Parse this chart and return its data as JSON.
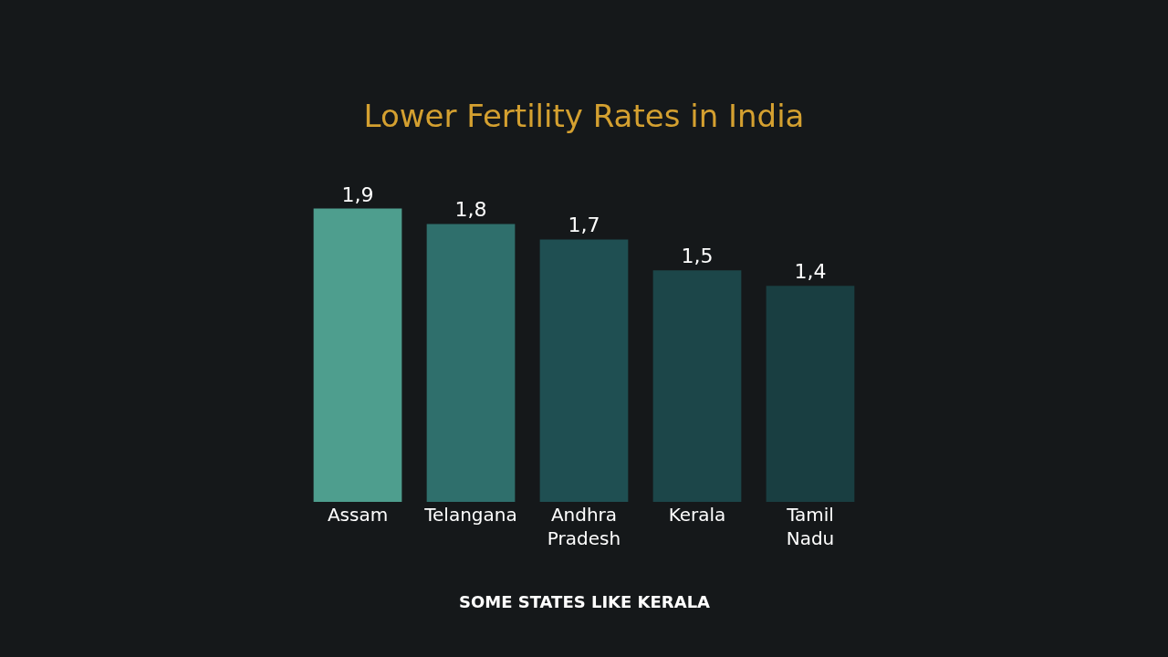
{
  "chart_data": {
    "type": "bar",
    "title": "Lower Fertility Rates in India",
    "categories": [
      "Assam",
      "Telangana",
      "Andhra Pradesh",
      "Kerala",
      "Tamil Nadu"
    ],
    "values": [
      1.9,
      1.8,
      1.7,
      1.5,
      1.4
    ],
    "value_labels": [
      "1,9",
      "1,8",
      "1,7",
      "1,5",
      "1,4"
    ],
    "colors": [
      "#4e9e8e",
      "#2f6f6c",
      "#1f4f52",
      "#1c4649",
      "#193e41"
    ],
    "annotations": [
      "SOME STATES LIKE KERALA"
    ]
  }
}
